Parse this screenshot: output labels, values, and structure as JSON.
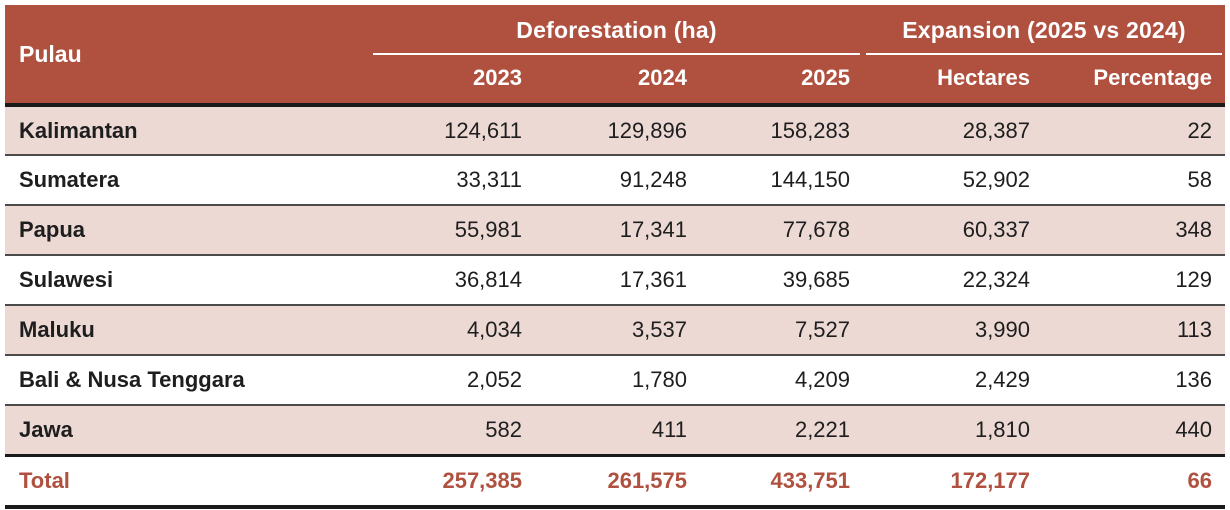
{
  "table": {
    "corner_header": "Pulau",
    "groups": [
      {
        "label": "Deforestation (ha)",
        "columns": [
          "2023",
          "2024",
          "2025"
        ]
      },
      {
        "label": "Expansion (2025 vs 2024)",
        "columns": [
          "Hectares",
          "Percentage"
        ]
      }
    ],
    "rows": [
      {
        "label": "Kalimantan",
        "values": [
          "124,611",
          "129,896",
          "158,283",
          "28,387",
          "22"
        ]
      },
      {
        "label": "Sumatera",
        "values": [
          "33,311",
          "91,248",
          "144,150",
          "52,902",
          "58"
        ]
      },
      {
        "label": "Papua",
        "values": [
          "55,981",
          "17,341",
          "77,678",
          "60,337",
          "348"
        ]
      },
      {
        "label": "Sulawesi",
        "values": [
          "36,814",
          "17,361",
          "39,685",
          "22,324",
          "129"
        ]
      },
      {
        "label": "Maluku",
        "values": [
          "4,034",
          "3,537",
          "7,527",
          "3,990",
          "113"
        ]
      },
      {
        "label": "Bali & Nusa Tenggara",
        "values": [
          "2,052",
          "1,780",
          "4,209",
          "2,429",
          "136"
        ]
      },
      {
        "label": "Jawa",
        "values": [
          "582",
          "411",
          "2,221",
          "1,810",
          "440"
        ]
      }
    ],
    "total_row": {
      "label": "Total",
      "values": [
        "257,385",
        "261,575",
        "433,751",
        "172,177",
        "66"
      ]
    },
    "colors": {
      "header_bg": "#B05140",
      "header_text": "#ffffff",
      "alt_row_bg": "#ECD9D4",
      "row_bg": "#ffffff",
      "body_text": "#1e1e1e",
      "total_text": "#B05140",
      "row_rule": "#4a4a4a",
      "heavy_rule": "#1a1a1a"
    }
  },
  "chart_data": {
    "type": "table",
    "title": "Deforestation by island (ha) and expansion 2025 vs 2024",
    "columns": [
      "Pulau",
      "2023",
      "2024",
      "2025",
      "Hectares",
      "Percentage"
    ],
    "column_groups": [
      {
        "label": "Deforestation (ha)",
        "span_columns": [
          "2023",
          "2024",
          "2025"
        ]
      },
      {
        "label": "Expansion (2025 vs 2024)",
        "span_columns": [
          "Hectares",
          "Percentage"
        ]
      }
    ],
    "rows": [
      [
        "Kalimantan",
        124611,
        129896,
        158283,
        28387,
        22
      ],
      [
        "Sumatera",
        33311,
        91248,
        144150,
        52902,
        58
      ],
      [
        "Papua",
        55981,
        17341,
        77678,
        60337,
        348
      ],
      [
        "Sulawesi",
        36814,
        17361,
        39685,
        22324,
        129
      ],
      [
        "Maluku",
        4034,
        3537,
        7527,
        3990,
        113
      ],
      [
        "Bali & Nusa Tenggara",
        2052,
        1780,
        4209,
        2429,
        136
      ],
      [
        "Jawa",
        582,
        411,
        2221,
        1810,
        440
      ]
    ],
    "total": [
      "Total",
      257385,
      261575,
      433751,
      172177,
      66
    ]
  }
}
